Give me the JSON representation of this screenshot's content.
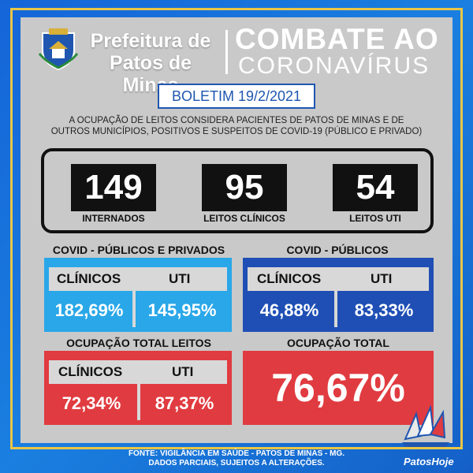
{
  "header": {
    "prefeitura_line1": "Prefeitura de",
    "prefeitura_line2": "Patos de Minas",
    "combate": "COMBATE AO",
    "coronavirus": "CORONAVÍRUS"
  },
  "boletim": "BOLETIM 19/2/2021",
  "description": {
    "line1": "A OCUPAÇÃO DE LEITOS CONSIDERA PACIENTES DE PATOS DE MINAS E DE",
    "line2": "OUTROS MUNICÍPIOS, POSITIVOS E SUSPEITOS DE COVID-19 (PÚBLICO E PRIVADO)"
  },
  "stats": [
    {
      "value": "149",
      "label": "INTERNADOS"
    },
    {
      "value": "95",
      "label": "LEITOS CLÍNICOS"
    },
    {
      "value": "54",
      "label": "LEITOS UTI"
    }
  ],
  "covid_publicos_privados": {
    "title": "COVID - PÚBLICOS E PRIVADOS",
    "clinicos_label": "CLÍNICOS",
    "uti_label": "UTI",
    "clinicos_value": "182,69%",
    "uti_value": "145,95%",
    "color": "#29a7e8"
  },
  "covid_publicos": {
    "title": "COVID - PÚBLICOS",
    "clinicos_label": "CLÍNICOS",
    "uti_label": "UTI",
    "clinicos_value": "46,88%",
    "uti_value": "83,33%",
    "color": "#1f4fb5"
  },
  "ocupacao_total_leitos": {
    "title": "OCUPAÇÃO TOTAL LEITOS",
    "clinicos_label": "CLÍNICOS",
    "uti_label": "UTI",
    "clinicos_value": "72,34%",
    "uti_value": "87,37%",
    "color": "#e03b40"
  },
  "ocupacao_total": {
    "title": "OCUPAÇÃO TOTAL",
    "value": "76,67%",
    "color": "#e03b40"
  },
  "footer": {
    "line1": "FONTE: VIGILÂNCIA EM SAÚDE - PATOS DE MINAS - MG.",
    "line2": "DADOS PARCIAIS, SUJEITOS A ALTERAÇÕES."
  },
  "watermark": "PatosHoje"
}
